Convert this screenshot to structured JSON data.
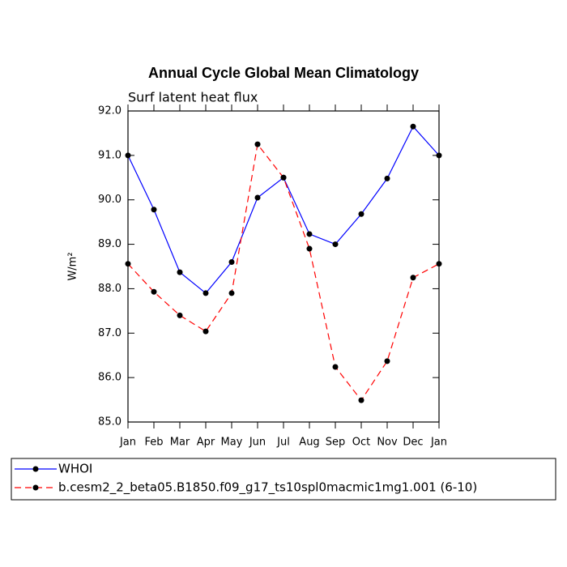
{
  "chart_data": {
    "type": "line",
    "title": "Annual Cycle Global Mean Climatology",
    "subtitle": "Surf latent heat flux",
    "y_label": "W/m²",
    "categories": [
      "Jan",
      "Feb",
      "Mar",
      "Apr",
      "May",
      "Jun",
      "Jul",
      "Aug",
      "Sep",
      "Oct",
      "Nov",
      "Dec",
      "Jan"
    ],
    "series": [
      {
        "name": "WHOI",
        "color": "#0000ff",
        "dash": "solid",
        "values": [
          91.0,
          89.78,
          88.37,
          87.9,
          88.6,
          90.05,
          90.5,
          89.23,
          89.0,
          89.68,
          90.48,
          91.65,
          91.0
        ]
      },
      {
        "name": "b.cesm2_2_beta05.B1850.f09_g17_ts10spl0macmic1mg1.001 (6-10)",
        "color": "#ff0000",
        "dash": "dashed",
        "values": [
          88.56,
          87.93,
          87.4,
          87.04,
          87.9,
          91.25,
          90.5,
          88.9,
          86.24,
          85.49,
          86.37,
          88.25,
          88.56
        ]
      }
    ],
    "ylim": [
      85,
      92
    ],
    "yticks": [
      {
        "value": 85,
        "label": "85.0"
      },
      {
        "value": 86,
        "label": "86.0"
      },
      {
        "value": 87,
        "label": "87.0"
      },
      {
        "value": 88,
        "label": "88.0"
      },
      {
        "value": 89,
        "label": "89.0"
      },
      {
        "value": 90,
        "label": "90.0"
      },
      {
        "value": 91,
        "label": "91.0"
      },
      {
        "value": 92,
        "label": "92.0"
      }
    ],
    "grid": false
  }
}
